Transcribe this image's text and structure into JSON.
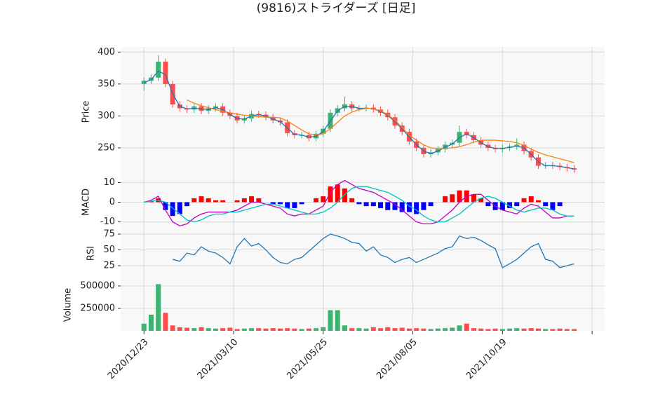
{
  "chart_data": [
    {
      "type": "candlestick",
      "title": "(9816)ストライダーズ [日足]",
      "ylabel": "Price",
      "x": [
        0,
        4,
        8,
        12,
        16,
        20,
        24,
        28,
        32,
        36,
        40,
        44,
        48,
        52,
        56,
        60,
        64,
        68,
        72,
        76,
        80,
        84,
        88,
        92,
        96,
        100,
        104,
        108,
        112,
        116,
        120,
        124,
        128,
        132,
        136,
        140,
        144,
        148,
        152,
        156,
        160,
        164,
        168,
        172,
        176,
        180,
        184,
        188,
        192,
        196,
        200,
        204,
        208,
        212,
        216,
        220,
        224,
        228,
        232,
        236,
        240
      ],
      "open": [
        350,
        355,
        360,
        385,
        350,
        318,
        312,
        310,
        315,
        308,
        312,
        315,
        305,
        300,
        293,
        296,
        303,
        302,
        298,
        293,
        290,
        273,
        270,
        270,
        265,
        272,
        280,
        305,
        312,
        318,
        312,
        312,
        313,
        310,
        305,
        298,
        285,
        275,
        260,
        250,
        240,
        243,
        248,
        255,
        258,
        275,
        270,
        262,
        255,
        250,
        248,
        250,
        252,
        255,
        245,
        235,
        222,
        223,
        222,
        220,
        218
      ],
      "high": [
        360,
        365,
        395,
        390,
        355,
        323,
        317,
        320,
        320,
        317,
        320,
        320,
        310,
        305,
        301,
        308,
        308,
        307,
        303,
        298,
        295,
        278,
        275,
        275,
        277,
        285,
        310,
        317,
        330,
        323,
        317,
        318,
        318,
        315,
        310,
        303,
        290,
        280,
        265,
        255,
        248,
        253,
        260,
        263,
        285,
        280,
        275,
        267,
        260,
        255,
        255,
        257,
        265,
        260,
        250,
        240,
        228,
        228,
        227,
        225,
        223
      ],
      "low": [
        340,
        350,
        355,
        345,
        313,
        307,
        305,
        305,
        303,
        303,
        307,
        300,
        295,
        288,
        288,
        291,
        297,
        293,
        288,
        285,
        268,
        265,
        265,
        260,
        260,
        267,
        275,
        300,
        307,
        307,
        307,
        307,
        305,
        300,
        293,
        280,
        270,
        255,
        245,
        235,
        235,
        238,
        243,
        250,
        253,
        265,
        257,
        250,
        245,
        243,
        243,
        245,
        247,
        240,
        230,
        217,
        217,
        217,
        215,
        213,
        211
      ],
      "close": [
        355,
        360,
        385,
        350,
        318,
        312,
        310,
        315,
        308,
        312,
        315,
        305,
        300,
        293,
        296,
        303,
        302,
        298,
        293,
        290,
        273,
        270,
        270,
        265,
        272,
        280,
        305,
        312,
        318,
        312,
        312,
        313,
        310,
        305,
        298,
        285,
        275,
        260,
        250,
        240,
        243,
        248,
        255,
        258,
        275,
        270,
        262,
        255,
        250,
        248,
        250,
        252,
        255,
        245,
        235,
        222,
        223,
        222,
        220,
        218,
        216
      ],
      "up_color": "#3cb371",
      "down_color": "#ff4d4d",
      "series": [
        {
          "color": "#1f77b4",
          "values": [
            352,
            357,
            370,
            365,
            335,
            315,
            311,
            312,
            311,
            310,
            313,
            310,
            302,
            296,
            295,
            300,
            302,
            300,
            295,
            291,
            281,
            271,
            270,
            267,
            268,
            276,
            292,
            308,
            315,
            315,
            312,
            312,
            311,
            307,
            301,
            291,
            280,
            267,
            255,
            245,
            241,
            245,
            251,
            256,
            266,
            272,
            266,
            258,
            252,
            249,
            249,
            251,
            253,
            250,
            240,
            228,
            222,
            222,
            221,
            219,
            217
          ]
        },
        {
          "color": "#ff7f0e",
          "values": [
            null,
            null,
            null,
            null,
            null,
            null,
            325,
            320,
            316,
            313,
            310,
            307,
            305,
            303,
            301,
            300,
            299,
            298,
            298,
            297,
            292,
            285,
            278,
            272,
            270,
            272,
            280,
            290,
            300,
            306,
            310,
            312,
            311,
            308,
            302,
            293,
            282,
            270,
            262,
            255,
            250,
            249,
            249,
            250,
            252,
            255,
            259,
            262,
            262,
            262,
            261,
            260,
            258,
            254,
            248,
            243,
            239,
            236,
            233,
            230,
            227
          ]
        }
      ],
      "xlim": [
        -13,
        257
      ],
      "ylim": [
        205,
        408
      ],
      "yticks": [
        250,
        300,
        350,
        400
      ],
      "grid": true
    },
    {
      "type": "macd",
      "ylabel": "MACD",
      "series": [
        {
          "color": "#c000c0",
          "values": [
            0,
            1,
            3,
            -4,
            -10,
            -12,
            -11,
            -8,
            -6,
            -5,
            -5,
            -5,
            -5,
            -4,
            -2,
            0,
            0,
            -1,
            -2,
            -3,
            -6,
            -7,
            -6,
            -6,
            -4,
            -2,
            5,
            9,
            11,
            9,
            7,
            6,
            5,
            3,
            1,
            -1,
            -4,
            -7,
            -10,
            -11,
            -11,
            -10,
            -7,
            -4,
            0,
            3,
            4,
            4,
            1,
            -2,
            -4,
            -5,
            -6,
            -3,
            -1,
            -2,
            -5,
            -8,
            -8,
            -7,
            -7
          ]
        },
        {
          "color": "#00bfbf",
          "values": [
            0,
            0.5,
            1,
            0,
            -3,
            -6,
            -9,
            -10,
            -9,
            -7,
            -6,
            -6,
            -5,
            -5,
            -4,
            -3,
            -2,
            -1,
            -1,
            -2,
            -3,
            -4,
            -5,
            -6,
            -6,
            -5,
            -3,
            0,
            4,
            7,
            8,
            8,
            7,
            6,
            5,
            3,
            1,
            -2,
            -4,
            -7,
            -9,
            -10,
            -10,
            -8,
            -6,
            -3,
            0,
            2,
            3,
            2,
            0,
            -2,
            -4,
            -5,
            -4,
            -3,
            -3,
            -4,
            -6,
            -7,
            -7
          ]
        }
      ],
      "histogram": [
        0,
        0.5,
        2,
        -4,
        -7,
        -6,
        -2,
        2,
        3,
        2,
        1,
        1,
        0,
        1,
        2,
        3,
        2,
        0,
        -1,
        -1,
        -3,
        -3,
        -1,
        0,
        2,
        3,
        8,
        9,
        7,
        2,
        -1,
        -2,
        -2,
        -3,
        -4,
        -4,
        -5,
        -5,
        -6,
        -4,
        -2,
        0,
        3,
        4,
        6,
        6,
        4,
        2,
        -2,
        -4,
        -4,
        -3,
        -2,
        2,
        3,
        1,
        -2,
        -4,
        -2,
        0,
        0
      ],
      "positive_color": "#ff0000",
      "negative_color": "#0000ff",
      "ylim": [
        -13,
        13
      ],
      "yticks": [
        -10,
        0,
        10
      ],
      "grid": true
    },
    {
      "type": "line",
      "ylabel": "RSI",
      "series": [
        {
          "color": "#1f77b4",
          "values": [
            null,
            null,
            null,
            null,
            35,
            32,
            45,
            42,
            55,
            48,
            45,
            38,
            28,
            55,
            68,
            56,
            60,
            50,
            38,
            30,
            28,
            35,
            38,
            48,
            58,
            68,
            75,
            72,
            68,
            62,
            60,
            48,
            55,
            42,
            38,
            30,
            35,
            38,
            30,
            35,
            40,
            45,
            52,
            55,
            72,
            68,
            70,
            65,
            58,
            52,
            22,
            28,
            35,
            45,
            55,
            60,
            35,
            32,
            22,
            25,
            28
          ]
        }
      ],
      "ylim": [
        4,
        85
      ],
      "yticks": [
        25,
        50,
        75
      ],
      "grid": true
    },
    {
      "type": "bar",
      "ylabel": "Volume",
      "values": [
        80000,
        180000,
        520000,
        200000,
        60000,
        40000,
        35000,
        30000,
        40000,
        30000,
        25000,
        30000,
        35000,
        20000,
        25000,
        30000,
        30000,
        25000,
        30000,
        25000,
        30000,
        25000,
        20000,
        25000,
        30000,
        40000,
        230000,
        230000,
        60000,
        30000,
        30000,
        25000,
        40000,
        30000,
        40000,
        30000,
        35000,
        25000,
        30000,
        25000,
        20000,
        25000,
        30000,
        35000,
        60000,
        80000,
        30000,
        25000,
        20000,
        25000,
        20000,
        25000,
        30000,
        25000,
        30000,
        25000,
        20000,
        20000,
        25000,
        20000,
        20000
      ],
      "ylim": [
        0,
        578000
      ],
      "yticks": [
        250000,
        500000
      ],
      "grid": true,
      "xticks": [
        {
          "value": 0,
          "label": "2020/12/23"
        },
        {
          "value": 50,
          "label": "2021/03/10"
        },
        {
          "value": 100,
          "label": "2021/05/25"
        },
        {
          "value": 150,
          "label": "2021/08/05"
        },
        {
          "value": 200,
          "label": "2021/10/19"
        },
        {
          "value": 250,
          "label": null
        }
      ]
    }
  ]
}
